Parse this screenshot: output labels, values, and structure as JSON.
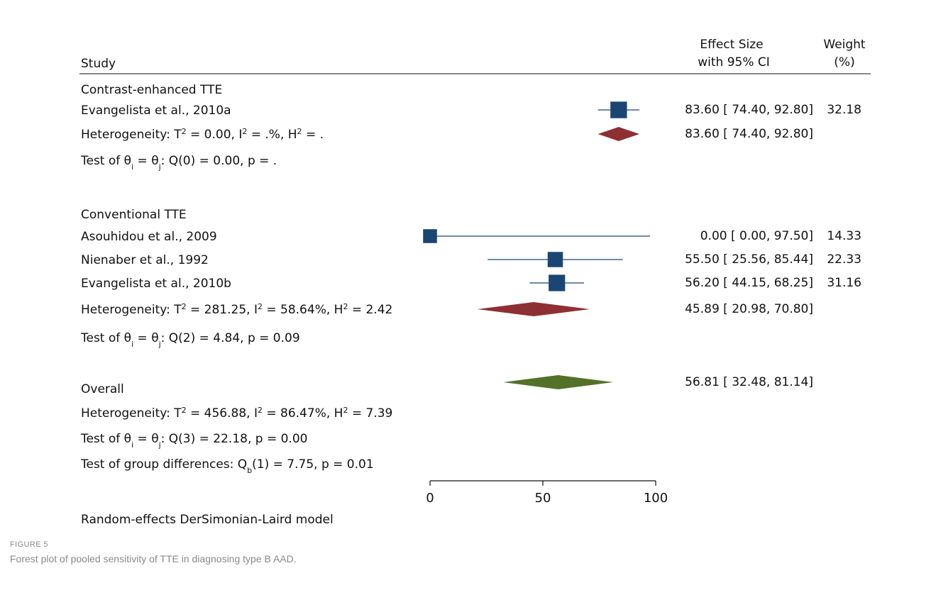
{
  "figure": {
    "label": "FIGURE 5",
    "caption": "Forest plot of pooled sensitivity of TTE in diagnosing type B AAD."
  },
  "colors": {
    "study_marker": "#1b4573",
    "subgroup_diamond": "#8e3033",
    "overall_diamond": "#547129"
  },
  "chart_data": {
    "type": "forest",
    "xlim": [
      0,
      100
    ],
    "x_ticks": [
      0,
      50,
      100
    ],
    "headers": {
      "study": "Study",
      "effect_line1": "Effect Size",
      "effect_line2": "with 95% CI",
      "weight_line1": "Weight",
      "weight_line2": "(%)"
    },
    "groups": [
      {
        "name": "Contrast-enhanced TTE",
        "studies": [
          {
            "name": "Evangelista et al., 2010a",
            "es": 83.6,
            "lo": 74.4,
            "hi": 92.8,
            "weight": 32.18,
            "ci_text": "83.60 [  74.40,  92.80]",
            "weight_text": "32.18"
          }
        ],
        "pooled": {
          "es": 83.6,
          "lo": 74.4,
          "hi": 92.8,
          "ci_text": "83.60 [  74.40,  92.80]"
        },
        "heterogeneity": {
          "prefix": "Heterogeneity: T",
          "t2": " = 0.00,  I",
          "i2": " = .%,  H",
          "h2": " = ."
        },
        "test": {
          "prefix": "Test of θ",
          "i": "i",
          "eq": " = θ",
          "j": "j",
          "rest": ": Q(0) = 0.00,   p = ."
        }
      },
      {
        "name": "Conventional TTE",
        "studies": [
          {
            "name": "Asouhidou et al., 2009",
            "es": 0.0,
            "lo": 0.0,
            "hi": 97.5,
            "weight": 14.33,
            "ci_text": "0.00 [    0.00,  97.50]",
            "weight_text": "14.33"
          },
          {
            "name": "Nienaber et al., 1992",
            "es": 55.5,
            "lo": 25.56,
            "hi": 85.44,
            "weight": 22.33,
            "ci_text": "55.50 [  25.56,  85.44]",
            "weight_text": "22.33"
          },
          {
            "name": "Evangelista et al., 2010b",
            "es": 56.2,
            "lo": 44.15,
            "hi": 68.25,
            "weight": 31.16,
            "ci_text": "56.20 [  44.15,  68.25]",
            "weight_text": "31.16"
          }
        ],
        "pooled": {
          "es": 45.89,
          "lo": 20.98,
          "hi": 70.8,
          "ci_text": "45.89 [  20.98,  70.80]"
        },
        "heterogeneity": {
          "prefix": "Heterogeneity: T",
          "t2": " = 281.25, I",
          "i2": " = 58.64%, H",
          "h2": " = 2.42"
        },
        "test": {
          "prefix": "Test of θ",
          "i": "i",
          "eq": " = θ",
          "j": "j",
          "rest": ": Q(2) = 4.84, p = 0.09"
        }
      }
    ],
    "overall": {
      "name": "Overall",
      "es": 56.81,
      "lo": 32.48,
      "hi": 81.14,
      "ci_text": "56.81 [  32.48,  81.14]",
      "heterogeneity": {
        "prefix": "Heterogeneity: T",
        "t2": " = 456.88, I",
        "i2": " = 86.47%, H",
        "h2": " = 7.39"
      },
      "test": {
        "prefix": "Test of θ",
        "i": "i",
        "eq": " = θ",
        "j": "j",
        "rest": ": Q(3) = 22.18, p = 0.00"
      },
      "group_test": {
        "prefix": "Test of group differences: Q",
        "b": "b",
        "rest": "(1) = 7.75, p = 0.01"
      }
    },
    "model_note": "Random-effects DerSimonian-Laird model"
  }
}
